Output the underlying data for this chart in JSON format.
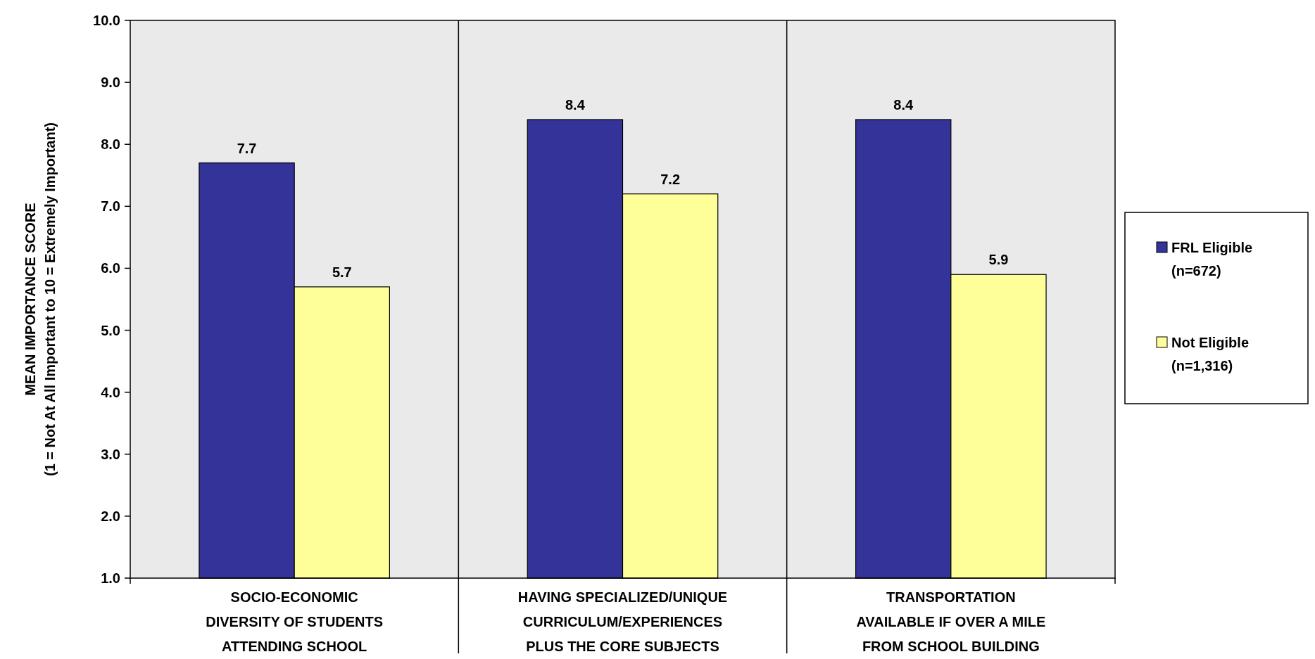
{
  "chart_data": {
    "type": "bar",
    "categories": [
      "SOCIO-ECONOMIC\nDIVERSITY OF STUDENTS\nATTENDING SCHOOL",
      "HAVING SPECIALIZED/UNIQUE\nCURRICULUM/EXPERIENCES\nPLUS THE CORE SUBJECTS",
      "TRANSPORTATION\nAVAILABLE IF OVER A MILE\nFROM SCHOOL BUILDING"
    ],
    "series": [
      {
        "name": "FRL Eligible\n(n=672)",
        "color": "#333399",
        "values": [
          7.7,
          8.4,
          8.4
        ]
      },
      {
        "name": "Not Eligible\n(n=1,316)",
        "color": "#ffff99",
        "values": [
          5.7,
          7.2,
          5.9
        ]
      }
    ],
    "ylabel": "MEAN IMPORTANCE SCORE\n(1 = Not At All Important to 10 = Extremely Important)",
    "ylim": [
      1,
      10
    ],
    "yticks": [
      {
        "value": 1,
        "label": "1.0"
      },
      {
        "value": 2,
        "label": "2.0"
      },
      {
        "value": 3,
        "label": "3.0"
      },
      {
        "value": 4,
        "label": "4.0"
      },
      {
        "value": 5,
        "label": "5.0"
      },
      {
        "value": 6,
        "label": "6.0"
      },
      {
        "value": 7,
        "label": "7.0"
      },
      {
        "value": 8,
        "label": "8.0"
      },
      {
        "value": 9,
        "label": "9.0"
      },
      {
        "value": 10,
        "label": "10.0"
      }
    ],
    "data_labels": true,
    "legend": "right"
  }
}
